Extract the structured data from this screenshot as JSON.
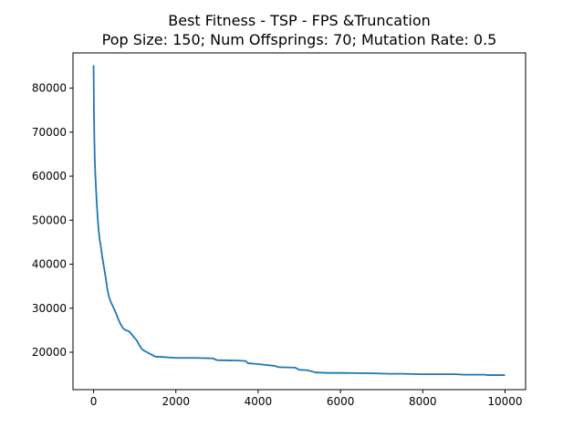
{
  "chart_data": {
    "type": "line",
    "title": "Best Fitness - TSP - FPS &Truncation",
    "subtitle": "Pop Size: 150; Num Offsprings: 70; Mutation Rate: 0.5",
    "xlabel": "",
    "ylabel": "",
    "xlim": [
      -500,
      10500
    ],
    "ylim": [
      11500,
      88000
    ],
    "x_ticks": [
      0,
      2000,
      4000,
      6000,
      8000,
      10000
    ],
    "y_ticks": [
      20000,
      30000,
      40000,
      50000,
      60000,
      70000,
      80000
    ],
    "grid": false,
    "legend": "none",
    "series": [
      {
        "color": "#1f77b4",
        "points": [
          [
            0,
            85200
          ],
          [
            5,
            80000
          ],
          [
            10,
            74000
          ],
          [
            20,
            68000
          ],
          [
            30,
            63500
          ],
          [
            45,
            60000
          ],
          [
            60,
            57000
          ],
          [
            80,
            53500
          ],
          [
            100,
            50500
          ],
          [
            120,
            48000
          ],
          [
            150,
            45500
          ],
          [
            180,
            43800
          ],
          [
            210,
            41700
          ],
          [
            250,
            39500
          ],
          [
            290,
            37200
          ],
          [
            330,
            34600
          ],
          [
            370,
            32700
          ],
          [
            420,
            31400
          ],
          [
            480,
            30200
          ],
          [
            540,
            29000
          ],
          [
            600,
            27500
          ],
          [
            660,
            26300
          ],
          [
            720,
            25400
          ],
          [
            780,
            25000
          ],
          [
            850,
            24800
          ],
          [
            900,
            24400
          ],
          [
            950,
            23800
          ],
          [
            1000,
            23200
          ],
          [
            1050,
            22700
          ],
          [
            1100,
            21800
          ],
          [
            1150,
            21000
          ],
          [
            1200,
            20500
          ],
          [
            1300,
            20000
          ],
          [
            1400,
            19500
          ],
          [
            1500,
            19000
          ],
          [
            1700,
            18900
          ],
          [
            2000,
            18700
          ],
          [
            2500,
            18700
          ],
          [
            2900,
            18600
          ],
          [
            3000,
            18200
          ],
          [
            3500,
            18100
          ],
          [
            3700,
            18000
          ],
          [
            3750,
            17500
          ],
          [
            4000,
            17300
          ],
          [
            4200,
            17100
          ],
          [
            4400,
            16900
          ],
          [
            4500,
            16600
          ],
          [
            4900,
            16500
          ],
          [
            5000,
            16000
          ],
          [
            5200,
            15900
          ],
          [
            5400,
            15400
          ],
          [
            5700,
            15300
          ],
          [
            6000,
            15300
          ],
          [
            6800,
            15200
          ],
          [
            7200,
            15100
          ],
          [
            7500,
            15100
          ],
          [
            8000,
            15000
          ],
          [
            8800,
            15000
          ],
          [
            9000,
            14900
          ],
          [
            9500,
            14900
          ],
          [
            9600,
            14800
          ],
          [
            10000,
            14800
          ]
        ]
      }
    ]
  }
}
